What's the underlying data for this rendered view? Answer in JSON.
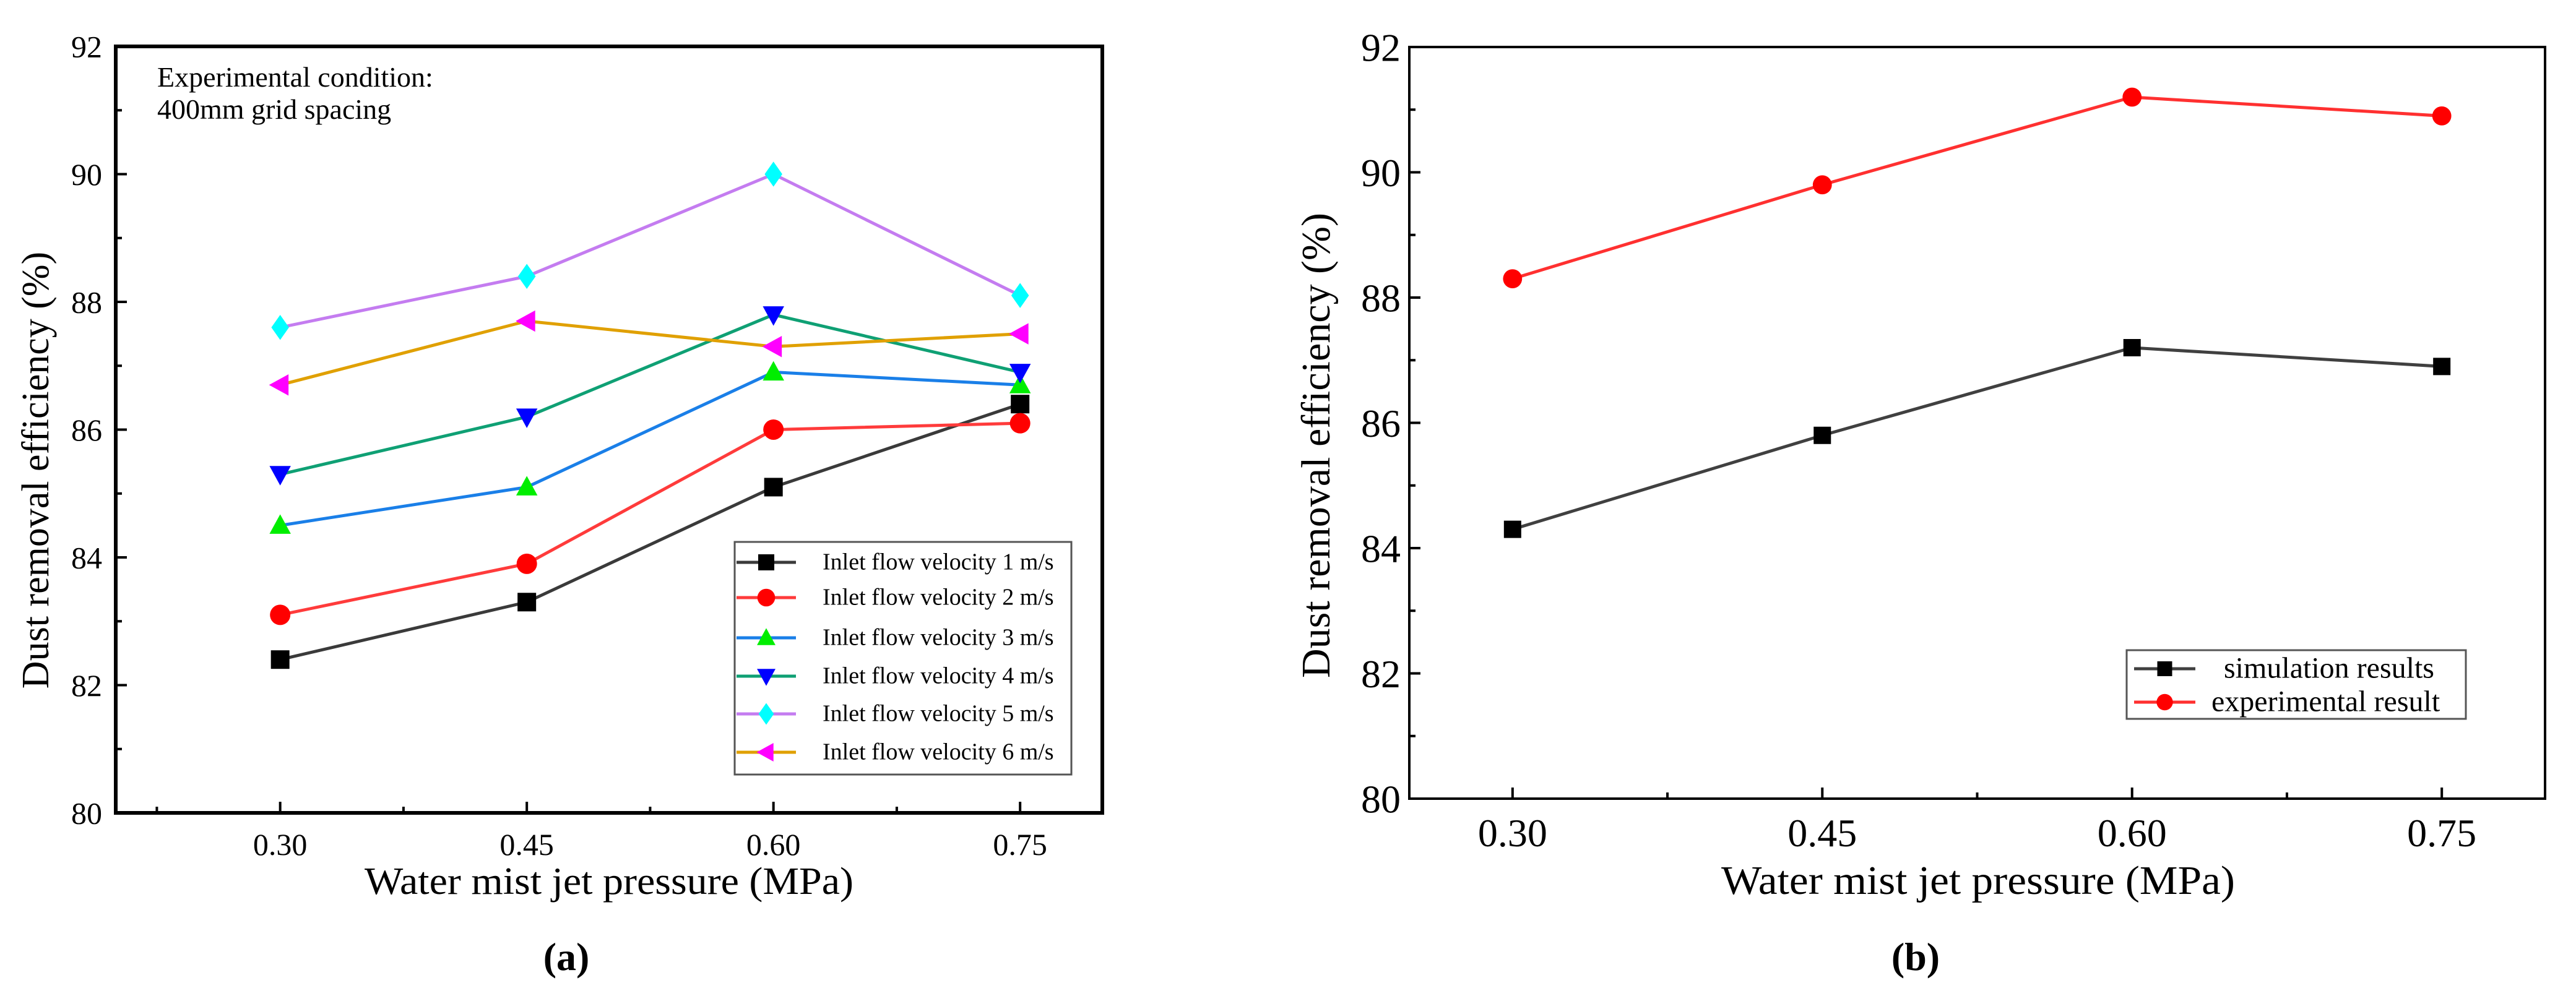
{
  "chart_data": [
    {
      "type": "line",
      "panel_label": "(a)",
      "annotation": [
        "Experimental condition:",
        "400mm grid spacing"
      ],
      "xlabel": "Water mist jet pressure (MPa)",
      "ylabel": "Dust removal efficiency (%)",
      "x": [
        0.3,
        0.45,
        0.6,
        0.75
      ],
      "x_tick_labels": [
        "0.30",
        "0.45",
        "0.60",
        "0.75"
      ],
      "xlim": [
        0.2,
        0.8
      ],
      "ylim": [
        80,
        92
      ],
      "y_ticks": [
        80,
        82,
        84,
        86,
        88,
        90,
        92
      ],
      "grid": false,
      "legend_position": "bottom-right",
      "series": [
        {
          "name": "Inlet flow velocity 1 m/s",
          "values": [
            82.4,
            83.3,
            85.1,
            86.4
          ],
          "line_color": "#3a3a3a",
          "marker_color": "#000000",
          "marker": "square"
        },
        {
          "name": "Inlet flow velocity 2 m/s",
          "values": [
            83.1,
            83.9,
            86.0,
            86.1
          ],
          "line_color": "#ff3b3b",
          "marker_color": "#ff0000",
          "marker": "circle"
        },
        {
          "name": "Inlet flow velocity 3 m/s",
          "values": [
            84.5,
            85.1,
            86.9,
            86.7
          ],
          "line_color": "#1a7fe8",
          "marker_color": "#00ee00",
          "marker": "triangle-up"
        },
        {
          "name": "Inlet flow velocity 4 m/s",
          "values": [
            85.3,
            86.2,
            87.8,
            86.9
          ],
          "line_color": "#0fa074",
          "marker_color": "#0000ff",
          "marker": "triangle-down"
        },
        {
          "name": "Inlet flow velocity 5 m/s",
          "values": [
            87.6,
            88.4,
            90.0,
            88.1
          ],
          "line_color": "#c47cf0",
          "marker_color": "#00ffff",
          "marker": "diamond"
        },
        {
          "name": "Inlet flow velocity 6 m/s",
          "values": [
            86.7,
            87.7,
            87.3,
            87.5
          ],
          "line_color": "#e0a000",
          "marker_color": "#ff00ff",
          "marker": "triangle-left"
        }
      ]
    },
    {
      "type": "line",
      "panel_label": "(b)",
      "xlabel": "Water mist jet pressure (MPa)",
      "ylabel": "Dust removal efficiency (%)",
      "x": [
        0.3,
        0.45,
        0.6,
        0.75
      ],
      "x_tick_labels": [
        "0.30",
        "0.45",
        "0.60",
        "0.75"
      ],
      "xlim": [
        0.25,
        0.8
      ],
      "ylim": [
        80,
        92
      ],
      "y_ticks": [
        80,
        82,
        84,
        86,
        88,
        90,
        92
      ],
      "grid": false,
      "legend_position": "bottom-right",
      "series": [
        {
          "name": "simulation results",
          "values": [
            84.3,
            85.8,
            87.2,
            86.9
          ],
          "line_color": "#404040",
          "marker_color": "#000000",
          "marker": "square"
        },
        {
          "name": "experimental result",
          "values": [
            88.3,
            89.8,
            91.2,
            90.9
          ],
          "line_color": "#ff3030",
          "marker_color": "#ff0000",
          "marker": "circle"
        }
      ]
    }
  ]
}
